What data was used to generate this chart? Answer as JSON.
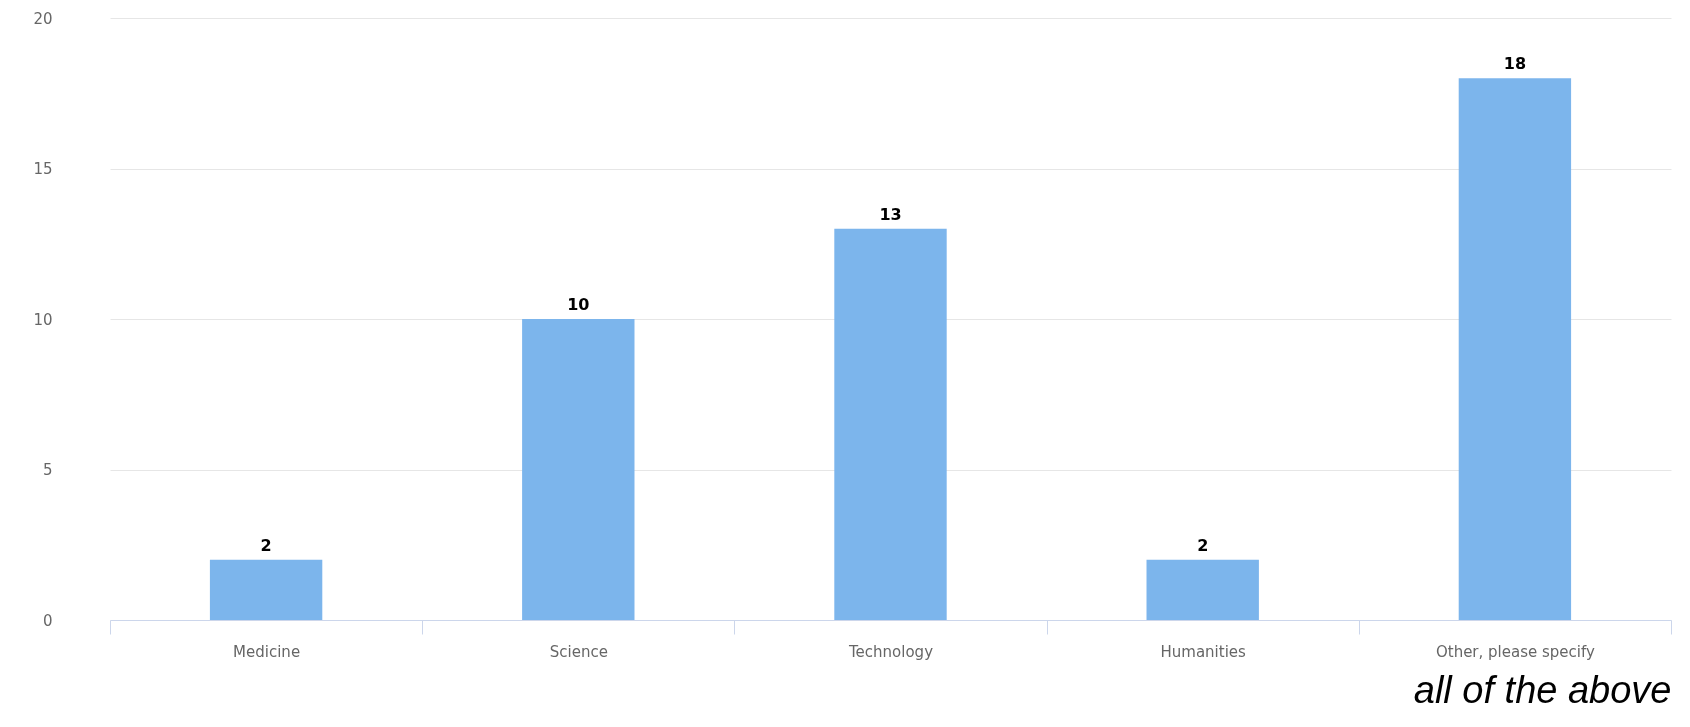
{
  "chart_data": {
    "type": "bar",
    "categories": [
      "Medicine",
      "Science",
      "Technology",
      "Humanities",
      "Other, please specify"
    ],
    "values": [
      2,
      10,
      13,
      2,
      18
    ],
    "color": "#7cb5ec",
    "ylim": [
      0,
      20
    ],
    "yticks": [
      0,
      5,
      10,
      15,
      20
    ],
    "grid": "y",
    "data_labels": true,
    "annotations": [
      "all of the above"
    ]
  }
}
